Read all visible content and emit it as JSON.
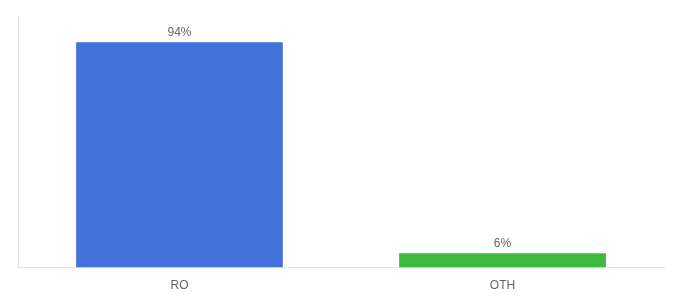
{
  "chart_data": {
    "type": "bar",
    "categories": [
      "RO",
      "OTH"
    ],
    "values": [
      94,
      6
    ],
    "colors": [
      "#4472db",
      "#3dba3d"
    ],
    "value_labels": [
      "94%",
      "6%"
    ],
    "data_labels": true,
    "ylim": [
      0,
      105
    ],
    "tick_labels": "x",
    "grid": false
  }
}
